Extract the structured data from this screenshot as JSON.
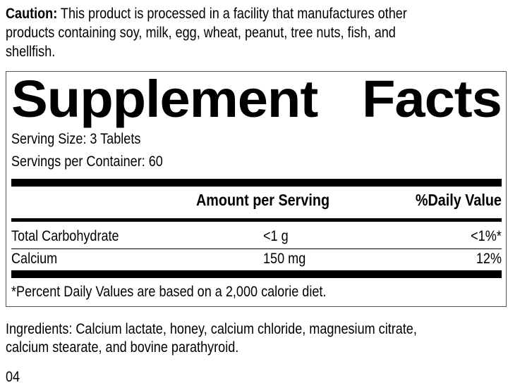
{
  "caution": {
    "label": "Caution:",
    "line1": " This product is processed in a facility that manufactures other",
    "line2": "products containing soy, milk, egg, wheat, peanut, tree nuts, fish, and",
    "line3": "shellfish."
  },
  "facts": {
    "title_word1": "Supplement",
    "title_word2": "Facts",
    "serving_size": "Serving Size: 3 Tablets",
    "servings_per_container": "Servings per Container: 60",
    "header": {
      "amount": "Amount per Serving",
      "dv": "%Daily Value"
    },
    "rows": [
      {
        "name": "Total Carbohydrate",
        "amount": "<1 g",
        "dv": "<1%*"
      },
      {
        "name": "Calcium",
        "amount": "150 mg",
        "dv": "12%"
      }
    ],
    "footnote": "*Percent Daily Values are based on a 2,000 calorie diet."
  },
  "ingredients": {
    "line1": "Ingredients: Calcium lactate, honey, calcium chloride, magnesium citrate,",
    "line2": "calcium stearate, and bovine parathyroid."
  },
  "code": "04"
}
